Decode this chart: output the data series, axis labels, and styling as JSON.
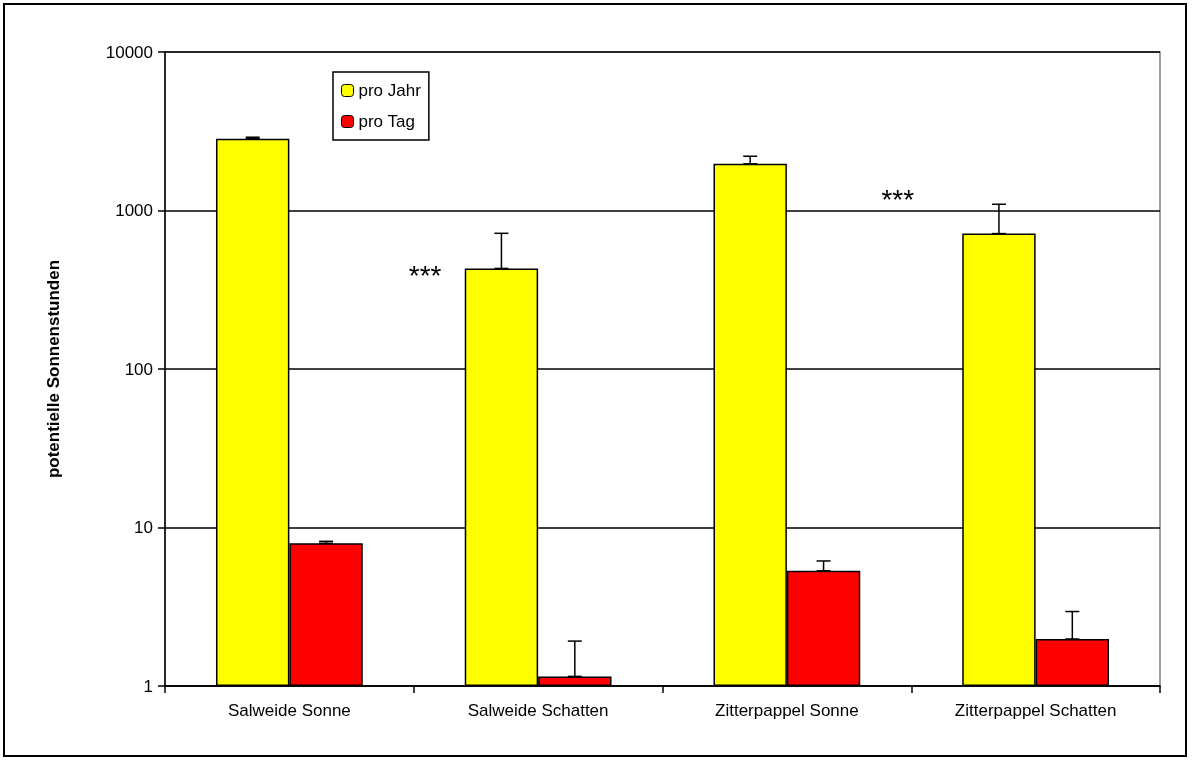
{
  "chart_data": {
    "type": "bar",
    "ylabel": "potentielle Sonnenstunden",
    "categories": [
      "Salweide Sonne",
      "Salweide Schatten",
      "Zitterpappel Sonne",
      "Zitterpappel Schatten"
    ],
    "series": [
      {
        "name": "pro Jahr",
        "color": "#ffff00",
        "values": [
          2840,
          431,
          1970,
          715
        ],
        "errors": [
          [
            2840,
            2900
          ],
          [
            431,
            718
          ],
          [
            1970,
            2200
          ],
          [
            715,
            1095
          ]
        ]
      },
      {
        "name": "pro Tag",
        "color": "#ff0000",
        "values": [
          7.95,
          1.15,
          5.33,
          1.98
        ],
        "errors": [
          [
            7.95,
            8.18
          ],
          [
            1.15,
            1.92
          ],
          [
            5.33,
            6.15
          ],
          [
            1.98,
            2.95
          ]
        ]
      }
    ],
    "log": "y",
    "ylim": [
      1,
      10000
    ],
    "yticks": [
      1,
      10,
      100,
      1000,
      10000
    ],
    "grid": "y",
    "legend": "top left",
    "annotations": [
      "***",
      "***"
    ]
  }
}
